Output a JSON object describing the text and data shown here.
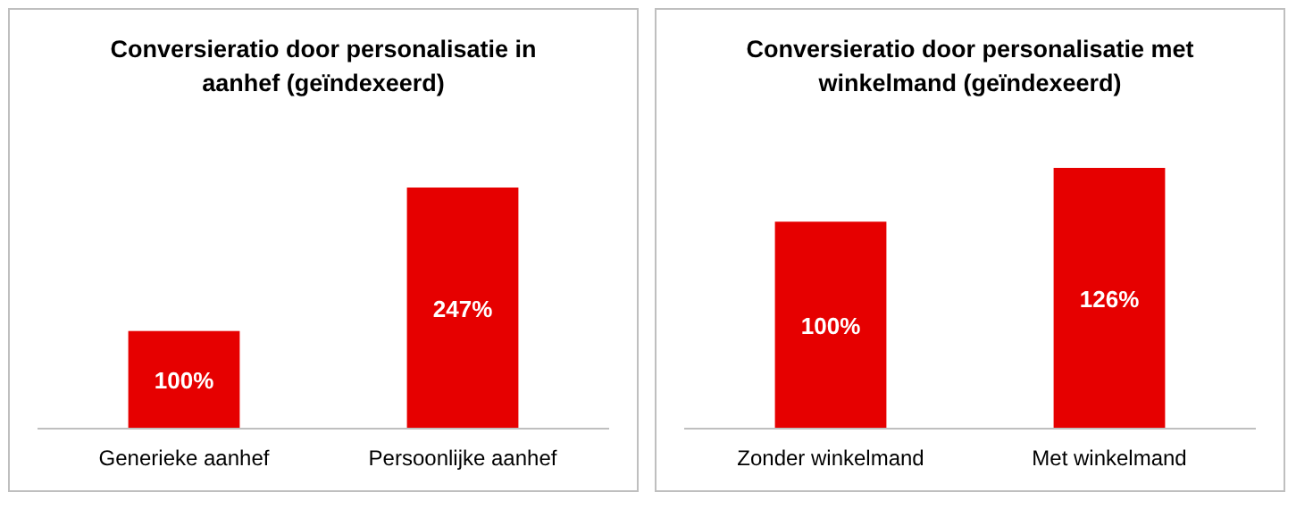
{
  "chart_data": [
    {
      "type": "bar",
      "title": "Conversieratio door personalisatie in aanhef (geïndexeerd)",
      "categories": [
        "Generieke aanhef",
        "Persoonlijke aanhef"
      ],
      "values": [
        100,
        247
      ],
      "value_labels": [
        "100%",
        "247%"
      ],
      "color": "#e60000",
      "tick_labels": "x"
    },
    {
      "type": "bar",
      "title": "Conversieratio door personalisatie met winkelmand (geïndexeerd)",
      "categories": [
        "Zonder winkelmand",
        "Met winkelmand"
      ],
      "values": [
        100,
        126
      ],
      "value_labels": [
        "100%",
        "126%"
      ],
      "color": "#e60000",
      "tick_labels": "x"
    }
  ]
}
